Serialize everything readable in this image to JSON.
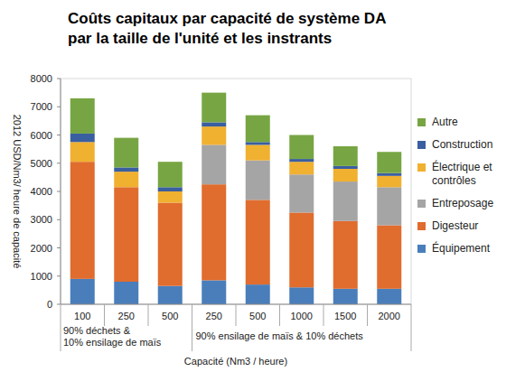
{
  "chart_data": {
    "type": "bar",
    "stacked": true,
    "grid": false,
    "legend": "right",
    "title": [
      "Coûts capitaux par capacité de système DA",
      "par la taille de l'unité et les instrants"
    ],
    "y_label": "2012 USD/Nm3/ heure de capacité",
    "x_label": "Capacité (Nm3 / heure)",
    "annotations": [
      "90% déchets &",
      "10% ensilage de maïs",
      "90% ensilage de maïs & 10% déchets"
    ],
    "categories": [
      "100",
      "250",
      "500",
      "250",
      "500",
      "1000",
      "1500",
      "2000"
    ],
    "ylim": [
      0,
      8000
    ],
    "yticks": [
      0,
      1000,
      2000,
      3000,
      4000,
      5000,
      6000,
      7000,
      8000
    ],
    "series": [
      {
        "name": "Équipement",
        "color": "#4a7ebb",
        "values": [
          900,
          800,
          650,
          850,
          700,
          600,
          550,
          550
        ]
      },
      {
        "name": "Digesteur",
        "color": "#e06c2e",
        "values": [
          4150,
          3350,
          2950,
          3400,
          3000,
          2650,
          2400,
          2250
        ]
      },
      {
        "name": "Entreposage",
        "color": "#a5a5a5",
        "values": [
          0,
          0,
          0,
          1400,
          1400,
          1350,
          1400,
          1350
        ]
      },
      {
        "name": "Électrique et contrôles",
        "color": "#f0b030",
        "values": [
          700,
          550,
          400,
          650,
          550,
          450,
          450,
          400
        ]
      },
      {
        "name": "Construction",
        "color": "#3a5fa0",
        "values": [
          300,
          150,
          150,
          150,
          100,
          100,
          100,
          100
        ]
      },
      {
        "name": "Autre",
        "color": "#77a543",
        "values": [
          1250,
          1050,
          900,
          1050,
          950,
          850,
          700,
          750
        ]
      }
    ]
  }
}
